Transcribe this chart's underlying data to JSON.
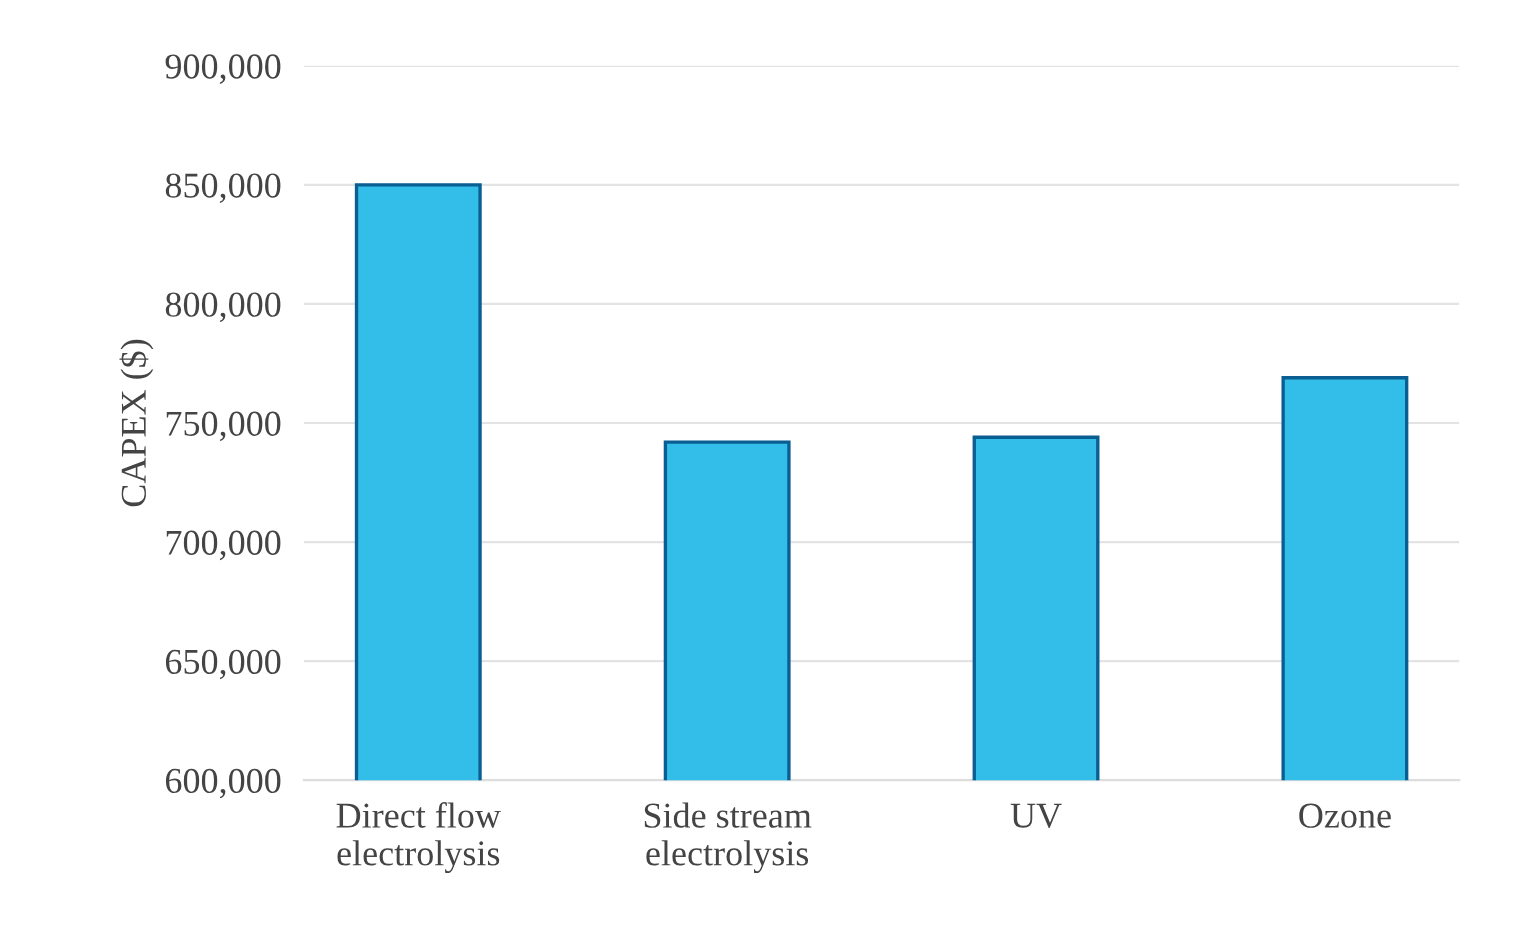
{
  "chart_data": {
    "type": "bar",
    "ylabel": "CAPEX ($)",
    "categories": [
      "Direct flow\nelectrolysis",
      "Side stream\nelectrolysis",
      "UV",
      "Ozone"
    ],
    "values": [
      850000,
      742000,
      744000,
      769000
    ],
    "color": "#33bde9",
    "ylim": [
      600000,
      900000
    ],
    "yticks": [
      {
        "value": 600000,
        "label": "600,000"
      },
      {
        "value": 650000,
        "label": "650,000"
      },
      {
        "value": 700000,
        "label": "700,000"
      },
      {
        "value": 750000,
        "label": "750,000"
      },
      {
        "value": 800000,
        "label": "800,000"
      },
      {
        "value": 850000,
        "label": "850,000"
      },
      {
        "value": 900000,
        "label": "900,000"
      }
    ],
    "grid": "y",
    "legend": false
  }
}
